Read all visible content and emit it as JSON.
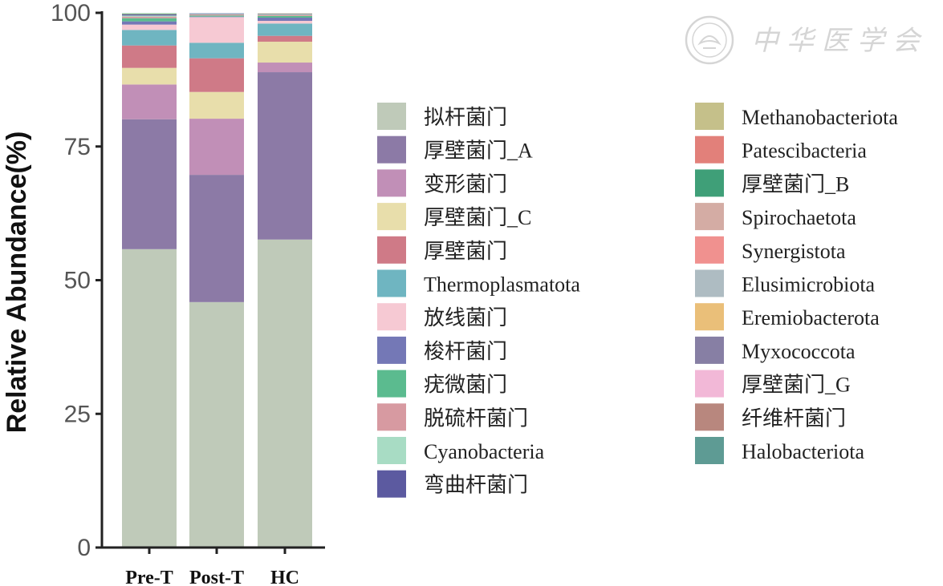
{
  "chart_data": {
    "type": "bar",
    "stacked": true,
    "title": "",
    "xlabel": "",
    "ylabel": "Relative Abundance(%)",
    "ylim": [
      0,
      100
    ],
    "yticks": [
      "0",
      "25",
      "50",
      "75",
      "100"
    ],
    "categories": [
      "Pre-T",
      "Post-T",
      "HC"
    ],
    "legend_position": "right",
    "grid": false,
    "series": [
      {
        "name": "拟杆菌门",
        "color": "#bfcab9",
        "values": [
          55.8,
          45.9,
          57.6
        ]
      },
      {
        "name": "厚壁菌门_A",
        "color": "#8c7aa6",
        "values": [
          24.3,
          23.8,
          31.3
        ]
      },
      {
        "name": "变形菌门",
        "color": "#c18fb7",
        "values": [
          6.5,
          10.5,
          1.8
        ]
      },
      {
        "name": "厚壁菌门_C",
        "color": "#e8deab",
        "values": [
          3.1,
          5.0,
          3.9
        ]
      },
      {
        "name": "厚壁菌门",
        "color": "#cf7a87",
        "values": [
          4.2,
          6.3,
          1.1
        ]
      },
      {
        "name": "Thermoplasmatota",
        "color": "#6fb5c1",
        "values": [
          2.9,
          2.9,
          2.3
        ]
      },
      {
        "name": "放线菌门",
        "color": "#f6c9d3",
        "values": [
          1.0,
          4.8,
          0.5
        ]
      },
      {
        "name": "梭杆菌门",
        "color": "#7478b6",
        "values": [
          0.6,
          0.1,
          0.6
        ]
      },
      {
        "name": "疣微菌门",
        "color": "#5bbb8f",
        "values": [
          0.6,
          0.2,
          0.3
        ]
      },
      {
        "name": "脱硫杆菌门",
        "color": "#d79aa1",
        "values": [
          0.3,
          0.2,
          0.2
        ]
      },
      {
        "name": "Cyanobacteria",
        "color": "#a8dcc4",
        "values": [
          0.2,
          0.1,
          0.1
        ]
      },
      {
        "name": "弯曲杆菌门",
        "color": "#5c5aa0",
        "values": [
          0.2,
          0.1,
          0.1
        ]
      },
      {
        "name": "Methanobacteriota",
        "color": "#c5c08a",
        "values": [
          0.1,
          0.0,
          0.1
        ]
      },
      {
        "name": "Patescibacteria",
        "color": "#e2807a",
        "values": [
          0.0,
          0.0,
          0.0
        ]
      },
      {
        "name": "厚壁菌门_B",
        "color": "#3f9f78",
        "values": [
          0.1,
          0.0,
          0.0
        ]
      },
      {
        "name": "Spirochaetota",
        "color": "#d4aca4",
        "values": [
          0.0,
          0.0,
          0.0
        ]
      },
      {
        "name": "Synergistota",
        "color": "#f0918f",
        "values": [
          0.0,
          0.0,
          0.0
        ]
      },
      {
        "name": "Elusimicrobiota",
        "color": "#aebcc2",
        "values": [
          0.0,
          0.0,
          0.0
        ]
      },
      {
        "name": "Eremiobacterota",
        "color": "#eabf79",
        "values": [
          0.0,
          0.0,
          0.0
        ]
      },
      {
        "name": "Myxococcota",
        "color": "#877fa4",
        "values": [
          0.0,
          0.0,
          0.0
        ]
      },
      {
        "name": "厚壁菌门_G",
        "color": "#f2b8d7",
        "values": [
          0.0,
          0.0,
          0.0
        ]
      },
      {
        "name": "纤维杆菌门",
        "color": "#b8877e",
        "values": [
          0.0,
          0.0,
          0.0
        ]
      },
      {
        "name": "Halobacteriota",
        "color": "#5e9b94",
        "values": [
          0.0,
          0.0,
          0.0
        ]
      }
    ]
  },
  "watermark": {
    "text": "中华医学会",
    "icon": "society-seal-icon"
  }
}
